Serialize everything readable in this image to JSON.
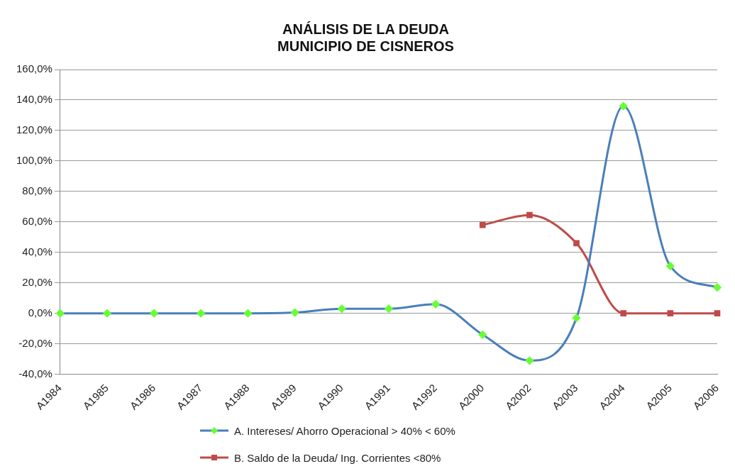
{
  "chart_data": {
    "type": "line",
    "title": "ANÁLISIS DE LA DEUDA\nMUNICIPIO DE CISNEROS",
    "categories": [
      "A1984",
      "A1985",
      "A1986",
      "A1987",
      "A1988",
      "A1989",
      "A1990",
      "A1991",
      "A1992",
      "A2000",
      "A2002",
      "A2003",
      "A2004",
      "A2005",
      "A2006"
    ],
    "series": [
      {
        "name": "A. Intereses/ Ahorro Operacional > 40% < 60%",
        "color": "#4a7ebb",
        "marker": "diamond",
        "colors": [
          "#66ff33",
          "#66ff33",
          "#66ff33",
          "#66ff33",
          "#66ff33",
          "#66ff33",
          "#66ff33",
          "#66ff33",
          "#66ff33",
          "#66ff33",
          "#66ff33",
          "#66ff33",
          "#66ff33",
          "#66ff33",
          "#66ff33"
        ],
        "values": [
          0,
          0,
          0,
          0,
          0,
          0.5,
          3,
          3,
          6,
          -14,
          -31,
          -3,
          136,
          31,
          17
        ]
      },
      {
        "name": "B. Saldo de la Deuda/ Ing. Corrientes <80%",
        "color": "#be4b48",
        "marker": "square",
        "values": [
          null,
          null,
          null,
          null,
          null,
          null,
          null,
          null,
          null,
          58,
          64.5,
          46,
          0,
          0,
          0
        ]
      }
    ],
    "ylim": [
      -40,
      160
    ],
    "yticks": [
      {
        "value": -40,
        "label": "-40,0%"
      },
      {
        "value": -20,
        "label": "-20,0%"
      },
      {
        "value": 0,
        "label": "0,0%"
      },
      {
        "value": 20,
        "label": "20,0%"
      },
      {
        "value": 40,
        "label": "40,0%"
      },
      {
        "value": 60,
        "label": "60,0%"
      },
      {
        "value": 80,
        "label": "80,0%"
      },
      {
        "value": 100,
        "label": "100,0%"
      },
      {
        "value": 120,
        "label": "120,0%"
      },
      {
        "value": 140,
        "label": "140,0%"
      },
      {
        "value": 160,
        "label": "160,0%"
      }
    ],
    "grid": "y",
    "legend": "bottom"
  }
}
